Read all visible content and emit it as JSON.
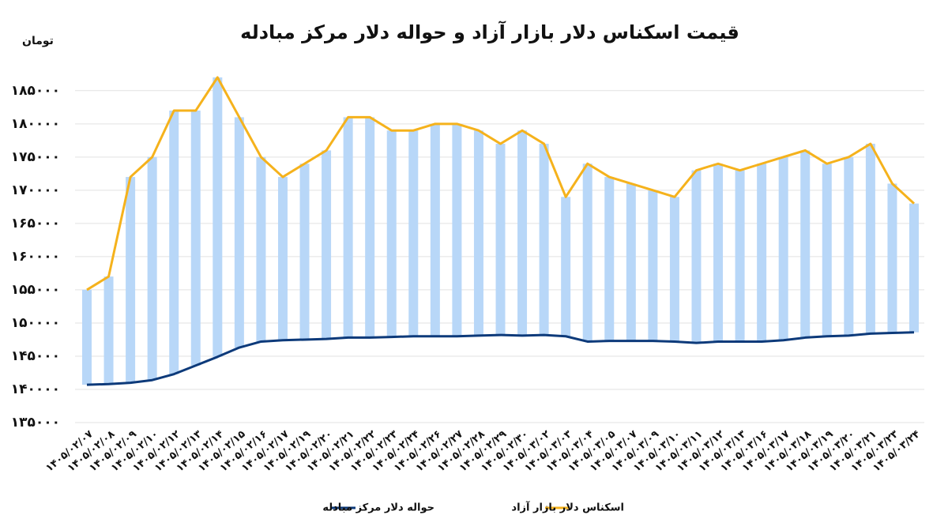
{
  "chart_data": {
    "type": "line",
    "title": "قیمت اسکناس دلار بازار آزاد و حواله دلار مرکز مبادله",
    "y_label": "تومان",
    "categories": [
      "۱۴۰۵/۰۲/۰۷",
      "۱۴۰۵/۰۲/۰۸",
      "۱۴۰۵/۰۲/۰۹",
      "۱۴۰۵/۰۲/۱۰",
      "۱۴۰۵/۰۲/۱۲",
      "۱۴۰۵/۰۲/۱۳",
      "۱۴۰۵/۰۲/۱۴",
      "۱۴۰۵/۰۲/۱۵",
      "۱۴۰۵/۰۲/۱۶",
      "۱۴۰۵/۰۲/۱۷",
      "۱۴۰۵/۰۲/۱۹",
      "۱۴۰۵/۰۲/۲۰",
      "۱۴۰۵/۰۲/۲۱",
      "۱۴۰۵/۰۲/۲۲",
      "۱۴۰۵/۰۲/۲۳",
      "۱۴۰۵/۰۲/۲۴",
      "۱۴۰۵/۰۲/۲۶",
      "۱۴۰۵/۰۲/۲۷",
      "۱۴۰۵/۰۲/۲۸",
      "۱۴۰۵/۰۲/۲۹",
      "۱۴۰۵/۰۲/۳۰",
      "۱۴۰۵/۰۳/۰۲",
      "۱۴۰۵/۰۳/۰۳",
      "۱۴۰۵/۰۳/۰۴",
      "۱۴۰۵/۰۳/۰۵",
      "۱۴۰۵/۰۳/۰۷",
      "۱۴۰۵/۰۳/۰۹",
      "۱۴۰۵/۰۳/۱۰",
      "۱۴۰۵/۰۳/۱۱",
      "۱۴۰۵/۰۳/۱۲",
      "۱۴۰۵/۰۳/۱۳",
      "۱۴۰۵/۰۳/۱۶",
      "۱۴۰۵/۰۳/۱۷",
      "۱۴۰۵/۰۳/۱۸",
      "۱۴۰۵/۰۳/۱۹",
      "۱۴۰۵/۰۳/۲۰",
      "۱۴۰۵/۰۳/۲۱",
      "۱۴۰۵/۰۳/۲۳",
      "۱۴۰۵/۰۳/۲۴"
    ],
    "series": [
      {
        "name": "حواله دلار مرکز مبادله",
        "color": "#0d3a7a",
        "values": [
          140700,
          140800,
          141000,
          141400,
          142300,
          143600,
          144900,
          146300,
          147200,
          147400,
          147500,
          147600,
          147800,
          147800,
          147900,
          148000,
          148000,
          148000,
          148100,
          148200,
          148100,
          148200,
          148000,
          147200,
          147300,
          147300,
          147300,
          147200,
          147000,
          147200,
          147200,
          147200,
          147400,
          147800,
          148000,
          148100,
          148400,
          148500,
          148600
        ]
      },
      {
        "name": "اسکناس دلار بازار آزاد",
        "color": "#f5b21c",
        "values": [
          155000,
          157000,
          172000,
          175000,
          182000,
          182000,
          187000,
          181000,
          175000,
          172000,
          174000,
          176000,
          181000,
          181000,
          179000,
          179000,
          180000,
          180000,
          179000,
          177000,
          179000,
          177000,
          169000,
          174000,
          172000,
          171000,
          170000,
          169000,
          173000,
          174000,
          173000,
          174000,
          175000,
          176000,
          174000,
          175000,
          177000,
          171000,
          168000
        ]
      }
    ],
    "bar_color": "#b8d7f8",
    "ylim": [
      135000,
      187000
    ],
    "yticks": [
      {
        "value": 135000,
        "label": "۱۳۵۰۰۰"
      },
      {
        "value": 140000,
        "label": "۱۴۰۰۰۰"
      },
      {
        "value": 145000,
        "label": "۱۴۵۰۰۰"
      },
      {
        "value": 150000,
        "label": "۱۵۰۰۰۰"
      },
      {
        "value": 155000,
        "label": "۱۵۵۰۰۰"
      },
      {
        "value": 160000,
        "label": "۱۶۰۰۰۰"
      },
      {
        "value": 165000,
        "label": "۱۶۵۰۰۰"
      },
      {
        "value": 170000,
        "label": "۱۷۰۰۰۰"
      },
      {
        "value": 175000,
        "label": "۱۷۵۰۰۰"
      },
      {
        "value": 180000,
        "label": "۱۸۰۰۰۰"
      },
      {
        "value": 185000,
        "label": "۱۸۵۰۰۰"
      }
    ],
    "grid": true,
    "legend": "bottom"
  }
}
